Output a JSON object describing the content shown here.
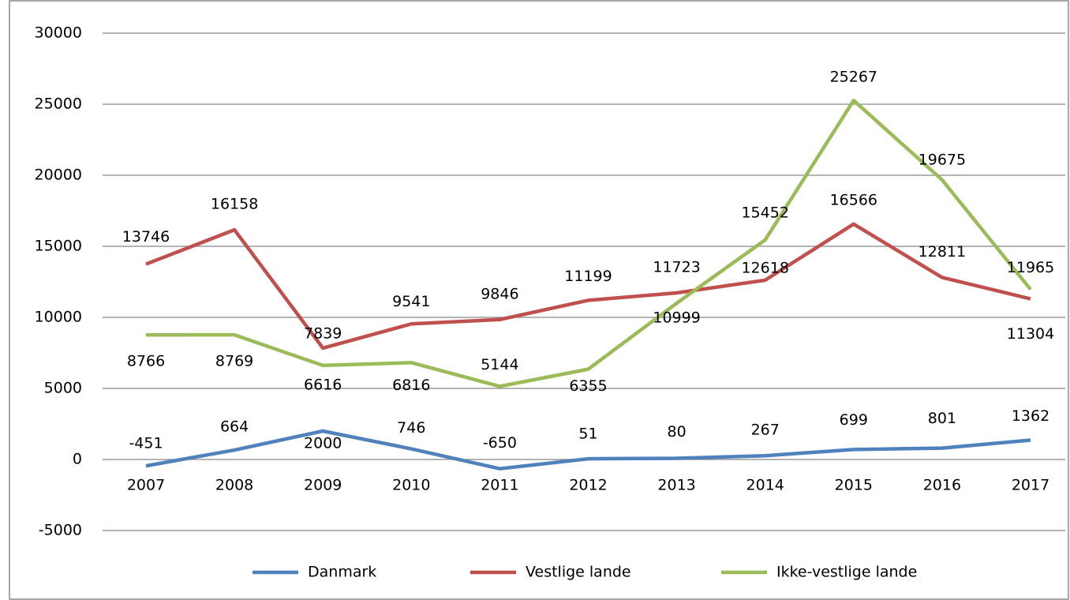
{
  "chart_data": {
    "type": "line",
    "categories": [
      "2007",
      "2008",
      "2009",
      "2010",
      "2011",
      "2012",
      "2013",
      "2014",
      "2015",
      "2016",
      "2017"
    ],
    "series": [
      {
        "name": "Danmark",
        "color": "#4f81bd",
        "values": [
          -451,
          664,
          2000,
          746,
          -650,
          51,
          80,
          267,
          699,
          801,
          1362
        ]
      },
      {
        "name": "Vestlige lande",
        "color": "#c0504d",
        "values": [
          13746,
          16158,
          7839,
          9541,
          9846,
          11199,
          11723,
          12618,
          16566,
          12811,
          11304
        ]
      },
      {
        "name": "Ikke-vestlige lande",
        "color": "#9bbb59",
        "values": [
          8766,
          8769,
          6616,
          6816,
          5144,
          6355,
          10999,
          15452,
          25267,
          19675,
          11965
        ]
      }
    ],
    "ylim": [
      -5000,
      30000
    ],
    "yticks": [
      -5000,
      0,
      5000,
      10000,
      15000,
      20000,
      25000,
      30000
    ],
    "grid": true,
    "legend": "bottom"
  }
}
